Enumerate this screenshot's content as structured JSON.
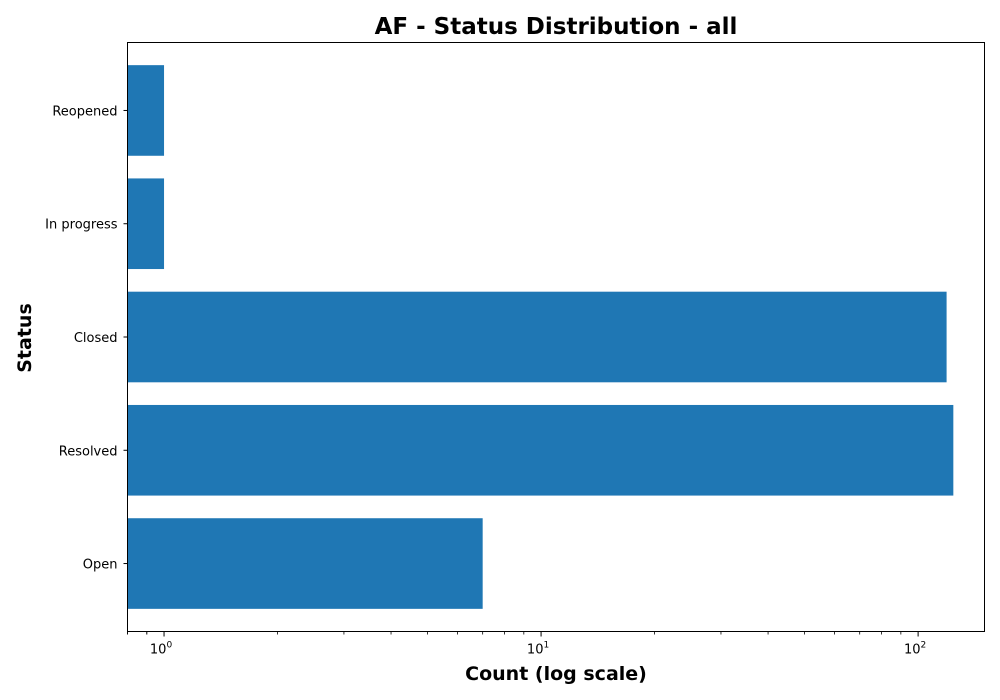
{
  "chart_data": {
    "type": "bar",
    "orientation": "horizontal",
    "title": "AF - Status Distribution - all",
    "xlabel": "Count (log scale)",
    "ylabel": "Status",
    "x_scale": "log",
    "xlim": [
      0.8,
      150
    ],
    "x_major_ticks": [
      {
        "value": 1,
        "base": "10",
        "exp": "0"
      },
      {
        "value": 10,
        "base": "10",
        "exp": "1"
      },
      {
        "value": 100,
        "base": "10",
        "exp": "2"
      }
    ],
    "categories": [
      "Open",
      "Resolved",
      "Closed",
      "In progress",
      "Reopened"
    ],
    "values": [
      7,
      124,
      119,
      1,
      1
    ],
    "bar_color": "#1f77b4",
    "grid": false
  }
}
